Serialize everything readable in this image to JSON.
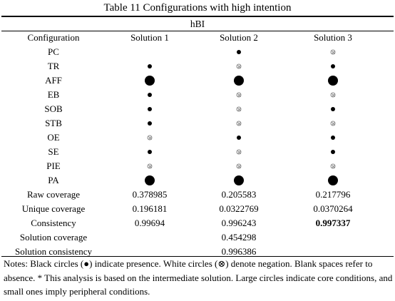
{
  "title": "Table 11 Configurations with high intention",
  "group_header": "hBI",
  "columns": [
    "Configuration",
    "Solution 1",
    "Solution 2",
    "Solution 3"
  ],
  "configs": [
    {
      "name": "PC",
      "cells": [
        "",
        "present-small",
        "negated"
      ]
    },
    {
      "name": "TR",
      "cells": [
        "present-small",
        "negated",
        "present-small"
      ]
    },
    {
      "name": "AFF",
      "cells": [
        "present-large",
        "present-large",
        "present-large"
      ]
    },
    {
      "name": "EB",
      "cells": [
        "present-small",
        "negated",
        "negated"
      ]
    },
    {
      "name": "SOB",
      "cells": [
        "present-small",
        "negated",
        "present-small"
      ]
    },
    {
      "name": "STB",
      "cells": [
        "present-small",
        "negated",
        "negated"
      ]
    },
    {
      "name": "OE",
      "cells": [
        "negated",
        "present-small",
        "present-small"
      ]
    },
    {
      "name": "SE",
      "cells": [
        "present-small",
        "negated",
        "present-small"
      ]
    },
    {
      "name": "PIE",
      "cells": [
        "negated",
        "negated",
        "negated"
      ]
    },
    {
      "name": "PA",
      "cells": [
        "present-large",
        "present-large",
        "present-large"
      ]
    }
  ],
  "stats": [
    {
      "label": "Raw coverage",
      "values": [
        "0.378985",
        "0.205583",
        "0.217796"
      ]
    },
    {
      "label": "Unique coverage",
      "values": [
        "0.196181",
        "0.0322769",
        "0.0370264"
      ]
    },
    {
      "label": "Consistency",
      "values": [
        "0.99694",
        "0.996243",
        "0.997337"
      ],
      "bold_index": 2
    }
  ],
  "solution_stats": [
    {
      "label": "Solution coverage",
      "value": "0.454298"
    },
    {
      "label": "Solution consistency",
      "value": "0.996386"
    }
  ],
  "notes": "Notes: Black circles (●) indicate presence. White circles (⊗) denote negation. Blank spaces refer to absence. * This analysis is based on the intermediate solution. Large circles indicate core conditions, and small ones imply peripheral conditions."
}
